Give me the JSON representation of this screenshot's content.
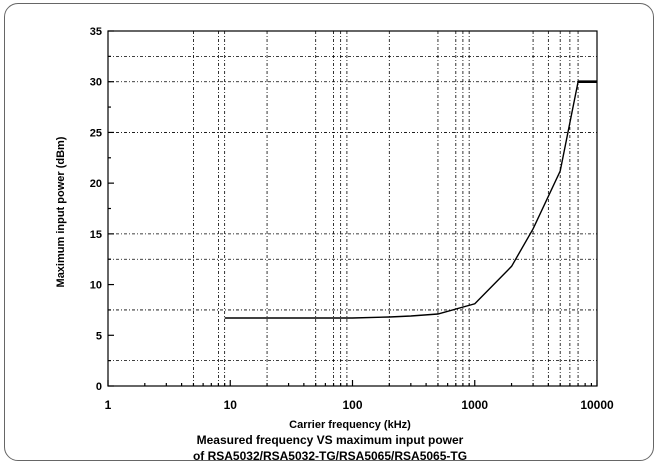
{
  "chart_data": {
    "type": "line",
    "x_scale": "log",
    "xlim": [
      1,
      10000
    ],
    "ylim": [
      0,
      35
    ],
    "xlabel": "Carrier frequency (kHz)",
    "ylabel": "Maximum input power (dBm)",
    "x_ticks": [
      "1",
      "10",
      "100",
      "1000",
      "10000"
    ],
    "y_ticks": [
      "0",
      "5",
      "10",
      "15",
      "20",
      "25",
      "30",
      "35"
    ],
    "y_gridlines": [
      2.5,
      7.5,
      12.5,
      15,
      25,
      30,
      32.5
    ],
    "x_gridlines": [
      5,
      8,
      9,
      20,
      50,
      70,
      80,
      90,
      200,
      500,
      700,
      800,
      900,
      3000,
      4000,
      5000,
      6000,
      7000
    ],
    "grid": true,
    "series": [
      {
        "x": [
          9,
          100,
          200,
          300,
          500,
          1000,
          2000,
          3000,
          5000,
          7000,
          10000
        ],
        "y": [
          6.7,
          6.7,
          6.8,
          6.9,
          7.1,
          8.1,
          11.8,
          15.5,
          21.2,
          30.0,
          30.0
        ]
      }
    ]
  },
  "caption": {
    "line1": "Measured frequency VS maximum input power",
    "line2": "of RSA5032/RSA5032-TG/RSA5065/RSA5065-TG"
  },
  "colors": {
    "line": "#000000",
    "grid": "#000000",
    "frame": "#666666"
  }
}
